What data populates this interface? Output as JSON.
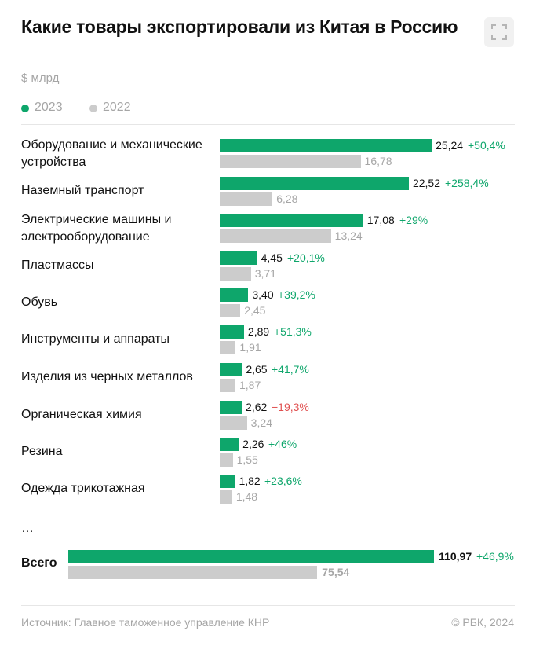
{
  "header": {
    "title": "Какие товары экспортировали из Китая в Россию",
    "unit": "$ млрд"
  },
  "legend": [
    {
      "label": "2023",
      "color": "#0ea66b"
    },
    {
      "label": "2022",
      "color": "#cccccc"
    }
  ],
  "colors": {
    "current": "#0ea66b",
    "previous": "#cccccc",
    "positive_change": "#0ea66b",
    "negative_change": "#e05050"
  },
  "chart_data": {
    "type": "bar",
    "orientation": "horizontal",
    "title": "Какие товары экспортировали из Китая в Россию",
    "ylabel": "$ млрд",
    "categories": [
      "Оборудование и механические устройства",
      "Наземный транспорт",
      "Электрические машины и электрооборудование",
      "Пластмассы",
      "Обувь",
      "Инструменты и аппараты",
      "Изделия из черных металлов",
      "Органическая химия",
      "Резина",
      "Одежда трикотажная"
    ],
    "series": [
      {
        "name": "2023",
        "values": [
          25.24,
          22.52,
          17.08,
          4.45,
          3.4,
          2.89,
          2.65,
          2.62,
          2.26,
          1.82
        ],
        "labels": [
          "25,24",
          "22,52",
          "17,08",
          "4,45",
          "3,40",
          "2,89",
          "2,65",
          "2,62",
          "2,26",
          "1,82"
        ]
      },
      {
        "name": "2022",
        "values": [
          16.78,
          6.28,
          13.24,
          3.71,
          2.45,
          1.91,
          1.87,
          3.24,
          1.55,
          1.48
        ],
        "labels": [
          "16,78",
          "6,28",
          "13,24",
          "3,71",
          "2,45",
          "1,91",
          "1,87",
          "3,24",
          "1,55",
          "1,48"
        ]
      }
    ],
    "changes": [
      "+50,4%",
      "+258,4%",
      "+29%",
      "+20,1%",
      "+39,2%",
      "+51,3%",
      "+41,7%",
      "−19,3%",
      "+46%",
      "+23,6%"
    ],
    "ellipsis": "…",
    "total": {
      "label": "Всего",
      "value_2023": 110.97,
      "label_2023": "110,97",
      "value_2022": 75.54,
      "label_2022": "75,54",
      "change": "+46,9%"
    }
  },
  "footer": {
    "source": "Источник: Главное таможенное управление КНР",
    "copyright": "© РБК, 2024"
  }
}
